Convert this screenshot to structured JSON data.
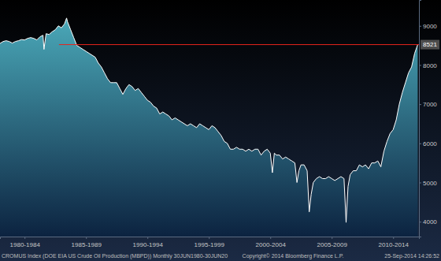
{
  "chart_data": {
    "type": "area",
    "color": "#4aa8b8",
    "x": [
      1980.5,
      1980.75,
      1981.0,
      1981.25,
      1981.5,
      1981.75,
      1982.0,
      1982.25,
      1982.5,
      1982.75,
      1983.0,
      1983.25,
      1983.5,
      1983.75,
      1984.0,
      1984.08,
      1984.25,
      1984.5,
      1984.75,
      1985.0,
      1985.25,
      1985.5,
      1985.75,
      1985.92,
      1986.0,
      1986.25,
      1986.5,
      1986.75,
      1987.0,
      1987.25,
      1987.5,
      1987.75,
      1988.0,
      1988.25,
      1988.5,
      1988.75,
      1989.0,
      1989.25,
      1989.5,
      1989.75,
      1990.0,
      1990.25,
      1990.5,
      1990.75,
      1991.0,
      1991.25,
      1991.5,
      1991.75,
      1992.0,
      1992.25,
      1992.5,
      1992.75,
      1993.0,
      1993.25,
      1993.5,
      1993.75,
      1994.0,
      1994.25,
      1994.5,
      1994.75,
      1995.0,
      1995.25,
      1995.5,
      1995.75,
      1996.0,
      1996.25,
      1996.5,
      1996.75,
      1997.0,
      1997.25,
      1997.5,
      1997.75,
      1998.0,
      1998.25,
      1998.5,
      1998.75,
      1999.0,
      1999.25,
      1999.5,
      1999.75,
      2000.0,
      2000.25,
      2000.5,
      2000.75,
      2001.0,
      2001.25,
      2001.5,
      2001.75,
      2002.0,
      2002.25,
      2002.5,
      2002.67,
      2002.83,
      2003.0,
      2003.25,
      2003.5,
      2003.75,
      2004.0,
      2004.25,
      2004.5,
      2004.67,
      2004.83,
      2005.0,
      2005.25,
      2005.5,
      2005.67,
      2005.83,
      2006.0,
      2006.25,
      2006.5,
      2006.75,
      2007.0,
      2007.25,
      2007.5,
      2007.75,
      2008.0,
      2008.25,
      2008.5,
      2008.67,
      2008.83,
      2009.0,
      2009.25,
      2009.5,
      2009.75,
      2010.0,
      2010.25,
      2010.5,
      2010.75,
      2011.0,
      2011.25,
      2011.5,
      2011.75,
      2012.0,
      2012.25,
      2012.5,
      2012.75,
      2013.0,
      2013.25,
      2013.5,
      2013.75,
      2014.0,
      2014.25,
      2014.5
    ],
    "values": [
      8550,
      8600,
      8620,
      8600,
      8560,
      8600,
      8620,
      8650,
      8640,
      8680,
      8700,
      8680,
      8640,
      8720,
      8760,
      8400,
      8800,
      8780,
      8850,
      8900,
      9000,
      8950,
      9050,
      9200,
      9100,
      8900,
      8700,
      8500,
      8450,
      8400,
      8350,
      8300,
      8250,
      8200,
      8050,
      7950,
      7800,
      7650,
      7550,
      7550,
      7550,
      7400,
      7250,
      7400,
      7500,
      7450,
      7350,
      7400,
      7300,
      7200,
      7100,
      7050,
      6950,
      6900,
      6750,
      6800,
      6750,
      6700,
      6600,
      6650,
      6600,
      6550,
      6500,
      6450,
      6500,
      6450,
      6400,
      6500,
      6450,
      6400,
      6350,
      6450,
      6400,
      6300,
      6200,
      6050,
      6000,
      5850,
      5850,
      5900,
      5850,
      5850,
      5800,
      5850,
      5800,
      5850,
      5850,
      5700,
      5800,
      5850,
      5750,
      5250,
      5750,
      5700,
      5700,
      5600,
      5650,
      5600,
      5550,
      5500,
      5000,
      5300,
      5450,
      5450,
      5300,
      4250,
      4700,
      5000,
      5100,
      5150,
      5100,
      5100,
      5150,
      5100,
      5050,
      5100,
      5150,
      5100,
      3980,
      4900,
      5200,
      5300,
      5300,
      5450,
      5400,
      5450,
      5350,
      5500,
      5500,
      5550,
      5400,
      5800,
      6050,
      6250,
      6350,
      6600,
      7000,
      7300,
      7550,
      7800,
      7950,
      8300,
      8521
    ],
    "xlim": [
      1980.5,
      2014.6
    ],
    "ylim": [
      3620,
      9660
    ],
    "xticks": [
      {
        "value": 1982.5,
        "label": "1980-1984"
      },
      {
        "value": 1987.5,
        "label": "1985-1989"
      },
      {
        "value": 1992.5,
        "label": "1990-1994"
      },
      {
        "value": 1997.5,
        "label": "1995-1999"
      },
      {
        "value": 2002.5,
        "label": "2000-2004"
      },
      {
        "value": 2007.5,
        "label": "2005-2009"
      },
      {
        "value": 2012.5,
        "label": "2010-2014"
      }
    ],
    "yticks": [
      4000,
      5000,
      6000,
      7000,
      8000,
      9000
    ],
    "annotations": [
      {
        "type": "hline",
        "y": 8521,
        "x": [
          1985.3,
          2014.6
        ],
        "label": "8521",
        "color": "#e8241c"
      }
    ],
    "footer": [
      "CROMUS Index (DOE EIA US Crude Oil Production (MBPD)) Monthly 30JUN1980-30JUN20",
      "Copyright© 2014 Bloomberg Finance L.P.",
      "25-Sep-2014 14:26:52"
    ]
  }
}
